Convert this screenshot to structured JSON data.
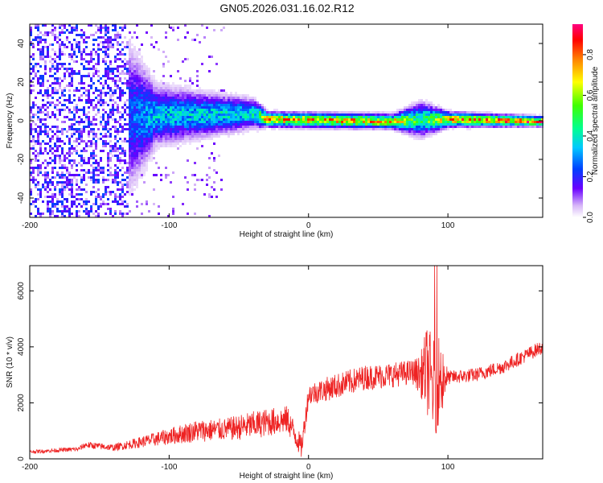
{
  "title": "GN05.2026.031.16.02.R12",
  "chart_data": [
    {
      "type": "heatmap",
      "xlabel": "Height of straight line (km)",
      "ylabel": "Frequency (Hz)",
      "xlim": [
        -200,
        168
      ],
      "ylim": [
        -50,
        50
      ],
      "xticks": [
        -200,
        -100,
        0,
        100
      ],
      "xtick_labels": [
        "-200",
        "-100",
        "0",
        "100"
      ],
      "yticks": [
        -40,
        -20,
        0,
        20,
        40
      ],
      "ytick_labels": [
        "-40",
        "-20",
        "0",
        "20",
        "40"
      ],
      "colorbar": {
        "label": "Normalized spectral amplitude",
        "range": [
          0,
          0.95
        ],
        "ticks": [
          0,
          0.2,
          0.4,
          0.6,
          0.8
        ],
        "tick_labels": [
          "0.0",
          "0.2",
          "0.4",
          "0.6",
          "0.8"
        ]
      },
      "description_profile": [
        {
          "x": -200,
          "center": 0,
          "spread": 50,
          "peak": 0.2
        },
        {
          "x": -140,
          "center": 0,
          "spread": 40,
          "peak": 0.22
        },
        {
          "x": -110,
          "center": 2,
          "spread": 12,
          "peak": 0.4
        },
        {
          "x": -40,
          "center": 3,
          "spread": 6,
          "peak": 0.45
        },
        {
          "x": -30,
          "center": 0,
          "spread": 3,
          "peak": 0.85
        },
        {
          "x": 60,
          "center": -1,
          "spread": 3,
          "peak": 0.8
        },
        {
          "x": 80,
          "center": 0,
          "spread": 7,
          "peak": 0.5
        },
        {
          "x": 100,
          "center": 0,
          "spread": 3,
          "peak": 0.85
        },
        {
          "x": 168,
          "center": -1,
          "spread": 2,
          "peak": 0.95
        }
      ]
    },
    {
      "type": "line",
      "xlabel": "Height of straight line (km)",
      "ylabel": "SNR (10 * v/v)",
      "xlim": [
        -200,
        168
      ],
      "ylim": [
        0,
        6900
      ],
      "xticks": [
        -200,
        -100,
        0,
        100
      ],
      "xtick_labels": [
        "-200",
        "-100",
        "0",
        "100"
      ],
      "yticks": [
        0,
        2000,
        4000,
        6000
      ],
      "ytick_labels": [
        "0",
        "2000",
        "4000",
        "6000"
      ],
      "series": [
        {
          "name": "SNR",
          "color": "#ee2222",
          "trend_x": [
            -200,
            -165,
            -160,
            -140,
            -120,
            -100,
            -80,
            -60,
            -40,
            -30,
            -15,
            -5,
            0,
            20,
            40,
            60,
            75,
            80,
            85,
            90,
            95,
            100,
            120,
            140,
            168
          ],
          "trend_y": [
            250,
            350,
            500,
            400,
            600,
            800,
            1000,
            1050,
            1200,
            1300,
            1400,
            400,
            2300,
            2600,
            2900,
            3000,
            3100,
            3000,
            3200,
            2500,
            3000,
            2900,
            3000,
            3300,
            4000
          ],
          "noise": [
            60,
            80,
            120,
            120,
            200,
            300,
            400,
            400,
            500,
            500,
            500,
            400,
            400,
            450,
            450,
            450,
            450,
            700,
            1600,
            1800,
            1600,
            250,
            250,
            250,
            250
          ]
        }
      ]
    }
  ]
}
